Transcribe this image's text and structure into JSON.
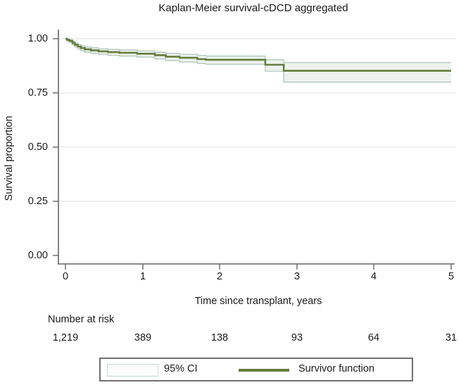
{
  "title": "Kaplan-Meier survival-cDCD aggregated",
  "chart_data": {
    "type": "line",
    "subtype": "kaplan-meier-step-with-ci-band",
    "title": "Kaplan-Meier survival-cDCD aggregated",
    "xlabel": "Time since transplant, years",
    "ylabel": "Survival proportion",
    "xlim": [
      0,
      5
    ],
    "ylim": [
      0.0,
      1.0
    ],
    "xticks": [
      "0",
      "1",
      "2",
      "3",
      "4",
      "5"
    ],
    "yticks": [
      "1.00",
      "0.75",
      "0.50",
      "0.25",
      "0.00"
    ],
    "grid": "horizontal-major, no gridline at 0.00",
    "colors": {
      "survivor_line": "#647d3c",
      "ci_band_fill": "#edf2ee",
      "ci_band_edge": "#a7c4b6",
      "axis": "#666666",
      "gridline": "#e6e6e6",
      "text": "#1a1a1a",
      "legend_border": "#707070"
    },
    "series": [
      {
        "name": "Survivor function",
        "ci_name": "95% CI",
        "points": [
          {
            "t": 0.0,
            "s": 1.0,
            "lo": 1.0,
            "hi": 1.0
          },
          {
            "t": 0.02,
            "s": 0.995,
            "lo": 0.99,
            "hi": 0.998
          },
          {
            "t": 0.05,
            "s": 0.99,
            "lo": 0.983,
            "hi": 0.995
          },
          {
            "t": 0.09,
            "s": 0.981,
            "lo": 0.972,
            "hi": 0.988
          },
          {
            "t": 0.12,
            "s": 0.972,
            "lo": 0.962,
            "hi": 0.98
          },
          {
            "t": 0.16,
            "s": 0.964,
            "lo": 0.952,
            "hi": 0.973
          },
          {
            "t": 0.2,
            "s": 0.957,
            "lo": 0.944,
            "hi": 0.967
          },
          {
            "t": 0.25,
            "s": 0.951,
            "lo": 0.938,
            "hi": 0.962
          },
          {
            "t": 0.33,
            "s": 0.946,
            "lo": 0.932,
            "hi": 0.958
          },
          {
            "t": 0.43,
            "s": 0.942,
            "lo": 0.928,
            "hi": 0.954
          },
          {
            "t": 0.55,
            "s": 0.938,
            "lo": 0.923,
            "hi": 0.951
          },
          {
            "t": 0.7,
            "s": 0.935,
            "lo": 0.92,
            "hi": 0.948
          },
          {
            "t": 0.93,
            "s": 0.931,
            "lo": 0.915,
            "hi": 0.944
          },
          {
            "t": 1.16,
            "s": 0.924,
            "lo": 0.907,
            "hi": 0.938
          },
          {
            "t": 1.3,
            "s": 0.917,
            "lo": 0.899,
            "hi": 0.932
          },
          {
            "t": 1.48,
            "s": 0.912,
            "lo": 0.893,
            "hi": 0.928
          },
          {
            "t": 1.71,
            "s": 0.906,
            "lo": 0.886,
            "hi": 0.923
          },
          {
            "t": 1.82,
            "s": 0.903,
            "lo": 0.882,
            "hi": 0.92
          },
          {
            "t": 2.59,
            "s": 0.88,
            "lo": 0.85,
            "hi": 0.903
          },
          {
            "t": 2.83,
            "s": 0.852,
            "lo": 0.8,
            "hi": 0.89
          },
          {
            "t": 5.0,
            "s": 0.852,
            "lo": 0.8,
            "hi": 0.89
          }
        ]
      }
    ],
    "risk_table": {
      "label": "Number at risk",
      "times": [
        0,
        1,
        2,
        3,
        4,
        5
      ],
      "values": [
        "1,219",
        "389",
        "138",
        "93",
        "64",
        "31"
      ]
    },
    "legend": {
      "position": "bottom-center-boxed",
      "items": [
        {
          "label": "95% CI",
          "type": "area"
        },
        {
          "label": "Survivor function",
          "type": "line"
        }
      ]
    }
  }
}
